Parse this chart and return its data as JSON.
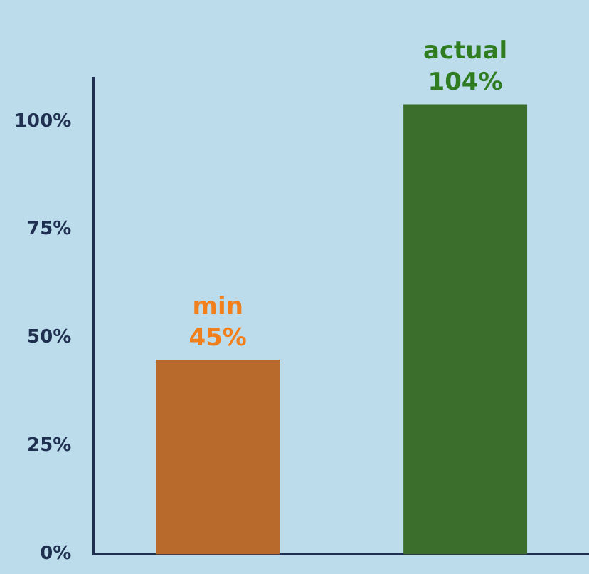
{
  "chart_data": {
    "type": "bar",
    "categories": [
      "min",
      "actual"
    ],
    "values": [
      45,
      104
    ],
    "colors": [
      "#b86a2c",
      "#3b6e2c"
    ],
    "value_labels": [
      "45%",
      "104%"
    ],
    "ylim": [
      0,
      110
    ],
    "yticks": [
      {
        "value": 0,
        "label": "0%"
      },
      {
        "value": 25,
        "label": "25%"
      },
      {
        "value": 50,
        "label": "50%"
      },
      {
        "value": 75,
        "label": "75%"
      },
      {
        "value": 100,
        "label": "100%"
      }
    ],
    "grid": false,
    "legend": false,
    "tick_labels": "y"
  }
}
